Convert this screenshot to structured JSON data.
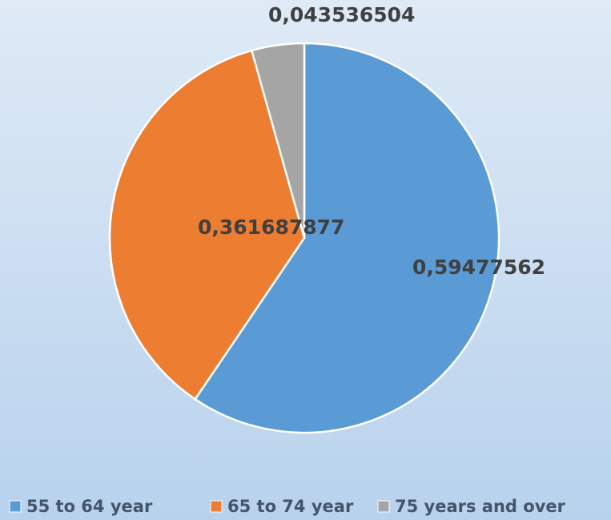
{
  "chart_data": {
    "type": "pie",
    "categories": [
      "55 to 64 year",
      "65 to 74 year",
      "75 years and over"
    ],
    "values": [
      0.59477562,
      0.361687877,
      0.043536504
    ],
    "value_labels": [
      "0,59477562",
      "0,361687877",
      "0,043536504"
    ],
    "colors": [
      "#5b9bd5",
      "#ed7d31",
      "#a5a5a5"
    ],
    "legend": "bottom"
  }
}
